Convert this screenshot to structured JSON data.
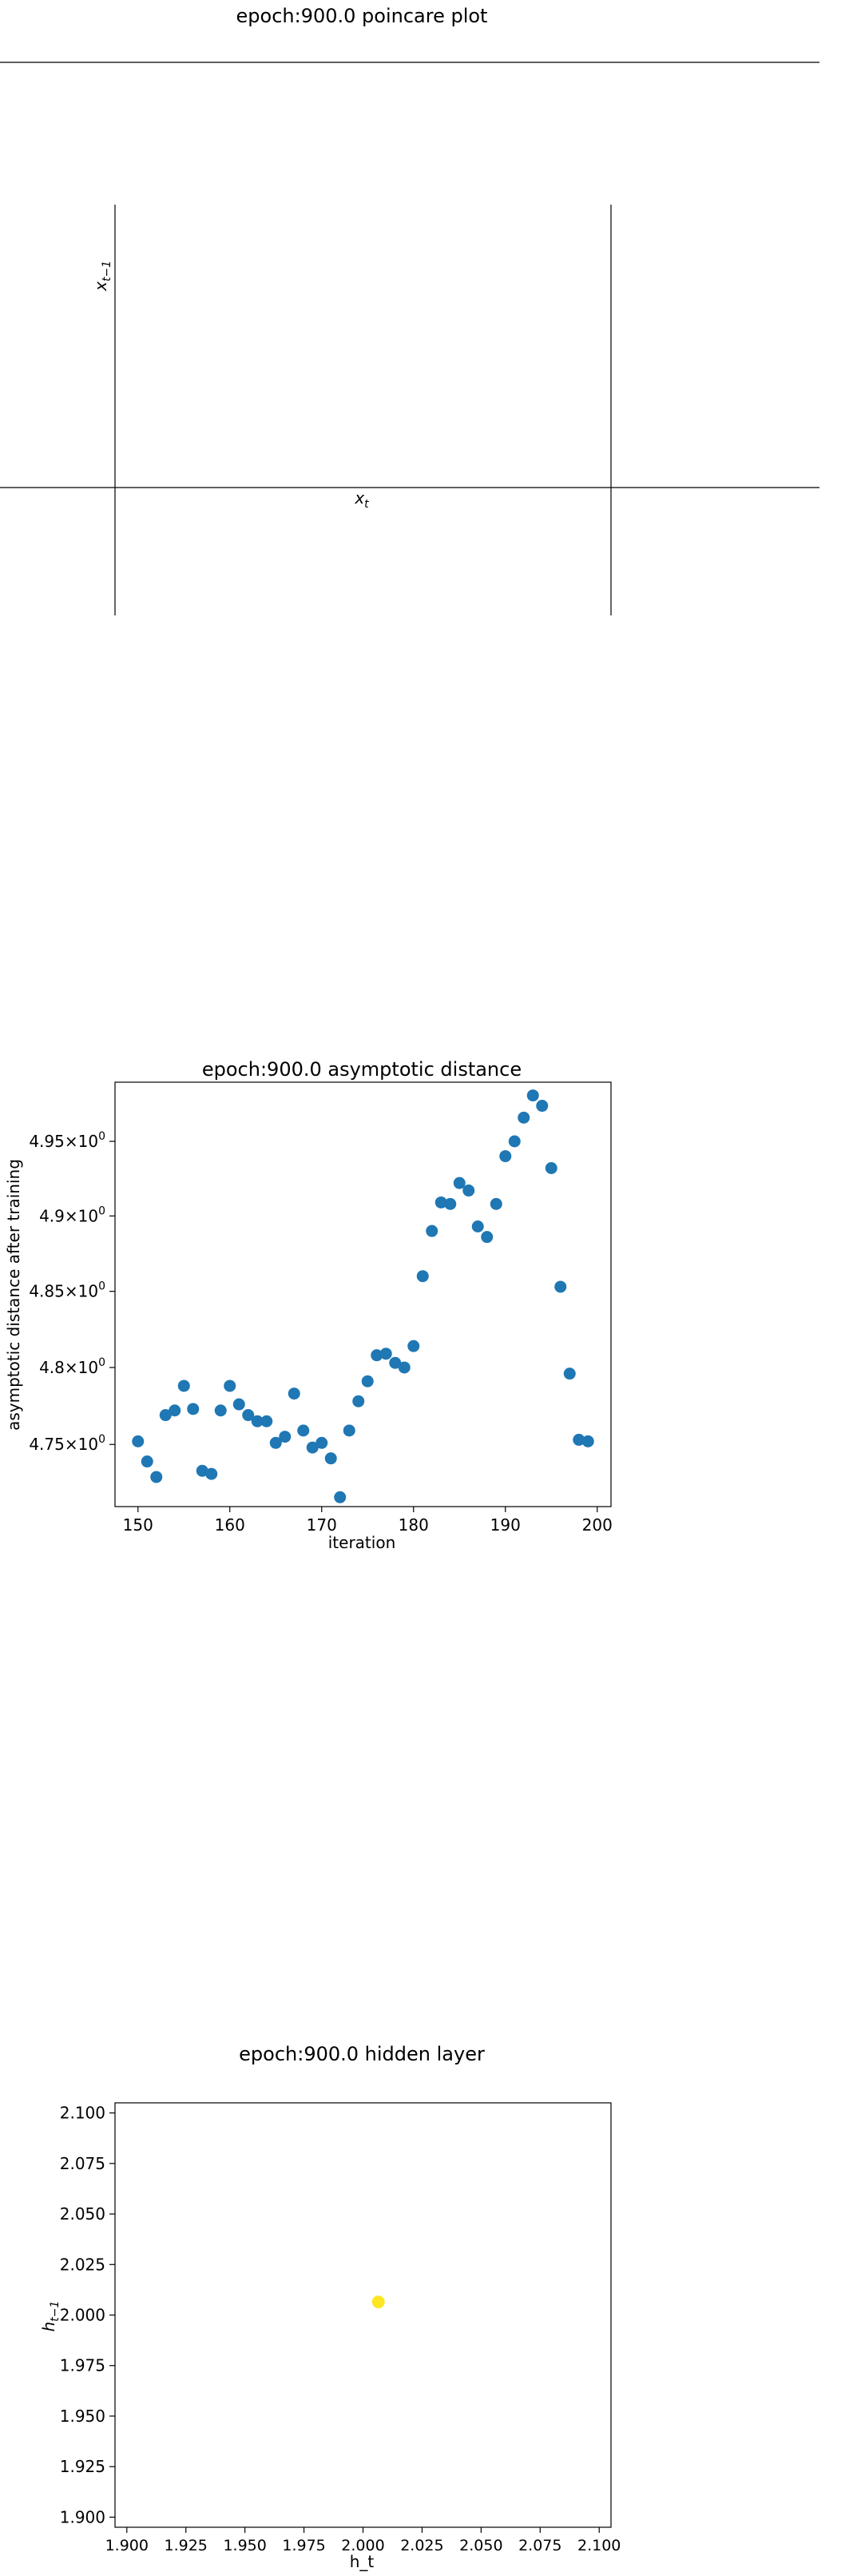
{
  "chart_data": [
    {
      "type": "line",
      "title": "epoch:900.0 poincare plot",
      "xlabel_base": "x",
      "xlabel_sub": "t",
      "ylabel_base": "x",
      "ylabel_sub": "t−1",
      "series": []
    },
    {
      "type": "scatter",
      "title": "epoch:900.0 asymptotic distance",
      "xlabel": "iteration",
      "ylabel": "asymptotic distance after training",
      "y_scale": "log",
      "color": "#1f77b4",
      "xlim": [
        147.5,
        201.5
      ],
      "ylim": [
        4.71,
        4.99
      ],
      "xticks": [
        150,
        160,
        170,
        180,
        190,
        200
      ],
      "xtick_labels": [
        "150",
        "160",
        "170",
        "180",
        "190",
        "200"
      ],
      "yticks": [
        4.75,
        4.8,
        4.85,
        4.9,
        4.95
      ],
      "ytick_mantissas": [
        "4.75",
        "4.8",
        "4.85",
        "4.9",
        "4.95"
      ],
      "ytick_times": "×",
      "ytick_base": "10",
      "ytick_exponent": "0",
      "x": [
        150,
        151,
        152,
        153,
        154,
        155,
        156,
        157,
        158,
        159,
        160,
        161,
        162,
        163,
        164,
        165,
        166,
        167,
        168,
        169,
        170,
        171,
        172,
        173,
        174,
        175,
        176,
        177,
        178,
        179,
        180,
        181,
        182,
        183,
        184,
        185,
        186,
        187,
        188,
        189,
        190,
        191,
        192,
        193,
        194,
        195,
        196,
        197,
        198,
        199
      ],
      "y": [
        4.752,
        4.739,
        4.729,
        4.769,
        4.772,
        4.788,
        4.773,
        4.733,
        4.731,
        4.772,
        4.788,
        4.776,
        4.769,
        4.765,
        4.765,
        4.751,
        4.755,
        4.783,
        4.759,
        4.748,
        4.751,
        4.741,
        4.716,
        4.759,
        4.778,
        4.791,
        4.808,
        4.809,
        4.803,
        4.8,
        4.814,
        4.86,
        4.89,
        4.909,
        4.908,
        4.922,
        4.917,
        4.893,
        4.886,
        4.908,
        4.94,
        4.95,
        4.966,
        4.981,
        4.974,
        4.932,
        4.853,
        4.796,
        4.753,
        4.752
      ]
    },
    {
      "type": "scatter",
      "title": "epoch:900.0 hidden layer",
      "xlabel": "h_t",
      "ylabel_base": "h",
      "ylabel_sub": "t−1",
      "color": "#fde725",
      "xlim": [
        1.895,
        2.105
      ],
      "ylim": [
        1.895,
        2.105
      ],
      "xticks": [
        1.9,
        1.925,
        1.95,
        1.975,
        2.0,
        2.025,
        2.05,
        2.075,
        2.1
      ],
      "xtick_labels": [
        "1.900",
        "1.925",
        "1.950",
        "1.975",
        "2.000",
        "2.025",
        "2.050",
        "2.075",
        "2.100"
      ],
      "yticks": [
        1.9,
        1.925,
        1.95,
        1.975,
        2.0,
        2.025,
        2.05,
        2.075,
        2.1
      ],
      "ytick_labels": [
        "1.900",
        "1.925",
        "1.950",
        "1.975",
        "2.000",
        "2.025",
        "2.050",
        "2.075",
        "2.100"
      ],
      "x": [
        2.0065
      ],
      "y": [
        2.0065
      ]
    }
  ]
}
